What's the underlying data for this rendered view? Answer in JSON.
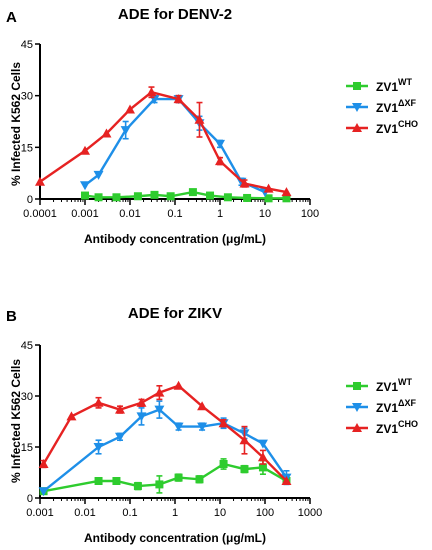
{
  "chart_data": [
    {
      "panel": "A",
      "type": "line",
      "title": "ADE for DENV-2",
      "xlabel": "Antibody concentration (μg/mL)",
      "ylabel": "% Infected K562 Cells",
      "xscale": "log",
      "xlim": [
        0.0001,
        100
      ],
      "ylim": [
        0,
        45
      ],
      "xticks": [
        "0.0001",
        "0.001",
        "0.01",
        "0.1",
        "1",
        "10",
        "100"
      ],
      "yticks": [
        "0",
        "15",
        "30",
        "45"
      ],
      "legend_position": "right",
      "series": [
        {
          "name": "ZV1",
          "sup": "WT",
          "color": "#2ecc2e",
          "marker": "square",
          "x": [
            0.001,
            0.002,
            0.005,
            0.015,
            0.035,
            0.08,
            0.25,
            0.6,
            1.5,
            4,
            12,
            30
          ],
          "y": [
            1,
            0.5,
            0.5,
            0.8,
            1.2,
            0.8,
            2,
            1,
            0.5,
            0.3,
            0.2,
            0.2
          ],
          "err": [
            0.8,
            0.5,
            0.5,
            0.5,
            0.8,
            0.5,
            0.8,
            0.5,
            0.3,
            0.3,
            0.2,
            0.2
          ]
        },
        {
          "name": "ZV1",
          "sup": "ΔXF",
          "color": "#1e8fe8",
          "marker": "triangle-down",
          "x": [
            0.001,
            0.002,
            0.008,
            0.035,
            0.12,
            0.35,
            1,
            3,
            10
          ],
          "y": [
            4,
            7,
            20,
            29,
            29,
            22,
            16,
            5,
            2
          ],
          "err": [
            0,
            0,
            2.5,
            1,
            1,
            2,
            1,
            1,
            0
          ]
        },
        {
          "name": "ZV1",
          "sup": "CHO",
          "color": "#e62222",
          "marker": "triangle-up",
          "x": [
            0.0001,
            0.001,
            0.003,
            0.01,
            0.03,
            0.12,
            0.35,
            1,
            3.5,
            12,
            30
          ],
          "y": [
            5,
            14,
            19,
            26,
            31,
            29,
            23,
            11,
            4.5,
            3,
            2
          ],
          "err": [
            0,
            0,
            0,
            0,
            1.5,
            1,
            5,
            1,
            1,
            0,
            0
          ]
        }
      ]
    },
    {
      "panel": "B",
      "type": "line",
      "title": "ADE for ZIKV",
      "xlabel": "Antibody concentration (μg/mL)",
      "ylabel": "% Infected K562 Cells",
      "xscale": "log",
      "xlim": [
        0.001,
        1000
      ],
      "ylim": [
        0,
        45
      ],
      "xticks": [
        "0.001",
        "0.01",
        "0.1",
        "1",
        "10",
        "100",
        "1000"
      ],
      "yticks": [
        "0",
        "15",
        "30",
        "45"
      ],
      "legend_position": "right",
      "series": [
        {
          "name": "ZV1",
          "sup": "WT",
          "color": "#2ecc2e",
          "marker": "square",
          "x": [
            0.0012,
            0.02,
            0.05,
            0.15,
            0.45,
            1.2,
            3.5,
            12,
            35,
            90,
            300
          ],
          "y": [
            2,
            5,
            5,
            3.5,
            4,
            6,
            5.5,
            10,
            8.5,
            9,
            5
          ],
          "err": [
            0,
            0,
            0,
            1,
            2.5,
            1,
            1,
            1.5,
            1,
            2,
            0
          ]
        },
        {
          "name": "ZV1",
          "sup": "ΔXF",
          "color": "#1e8fe8",
          "marker": "triangle-down",
          "x": [
            0.0012,
            0.02,
            0.06,
            0.18,
            0.45,
            1.2,
            4,
            12,
            35,
            90,
            300
          ],
          "y": [
            2,
            15,
            18,
            24,
            26,
            21,
            21,
            22,
            19,
            16,
            6
          ],
          "err": [
            0,
            2,
            1,
            2.5,
            2.5,
            1,
            1,
            1.5,
            1.5,
            0,
            2
          ]
        },
        {
          "name": "ZV1",
          "sup": "CHO",
          "color": "#e62222",
          "marker": "triangle-up",
          "x": [
            0.0012,
            0.005,
            0.02,
            0.06,
            0.18,
            0.45,
            1.2,
            4,
            12,
            35,
            90,
            300
          ],
          "y": [
            10,
            24,
            28,
            26,
            28,
            31,
            33,
            27,
            22,
            17,
            12,
            5
          ],
          "err": [
            1,
            0,
            1.5,
            1,
            1,
            2,
            0,
            0,
            1,
            4,
            2,
            0
          ]
        }
      ]
    }
  ],
  "panels": {
    "a_letter": "A",
    "b_letter": "B"
  }
}
